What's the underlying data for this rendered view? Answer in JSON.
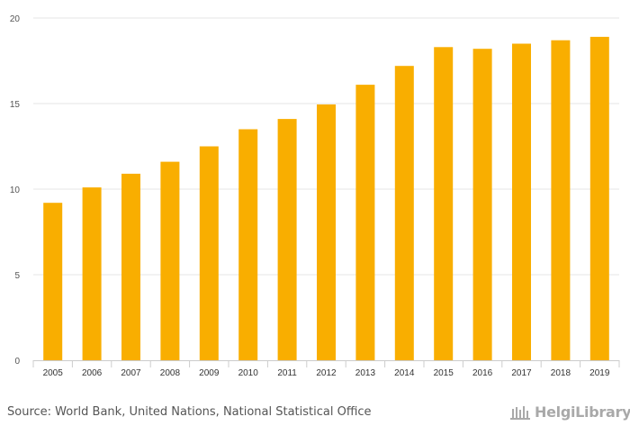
{
  "chart_data": {
    "type": "bar",
    "categories": [
      "2005",
      "2006",
      "2007",
      "2008",
      "2009",
      "2010",
      "2011",
      "2012",
      "2013",
      "2014",
      "2015",
      "2016",
      "2017",
      "2018",
      "2019"
    ],
    "values": [
      9.2,
      10.1,
      10.9,
      11.6,
      12.5,
      13.5,
      14.1,
      14.95,
      16.1,
      17.2,
      18.3,
      18.2,
      18.5,
      18.7,
      18.9
    ],
    "ylim": [
      0,
      20
    ],
    "yticks": [
      0,
      5,
      10,
      15,
      20
    ],
    "title": "",
    "xlabel": "",
    "ylabel": "",
    "bar_color": "#f9ae00",
    "grid": true
  },
  "footer": {
    "source": "Source: World Bank, United Nations, National Statistical Office",
    "logo": "HelgiLibrary."
  }
}
